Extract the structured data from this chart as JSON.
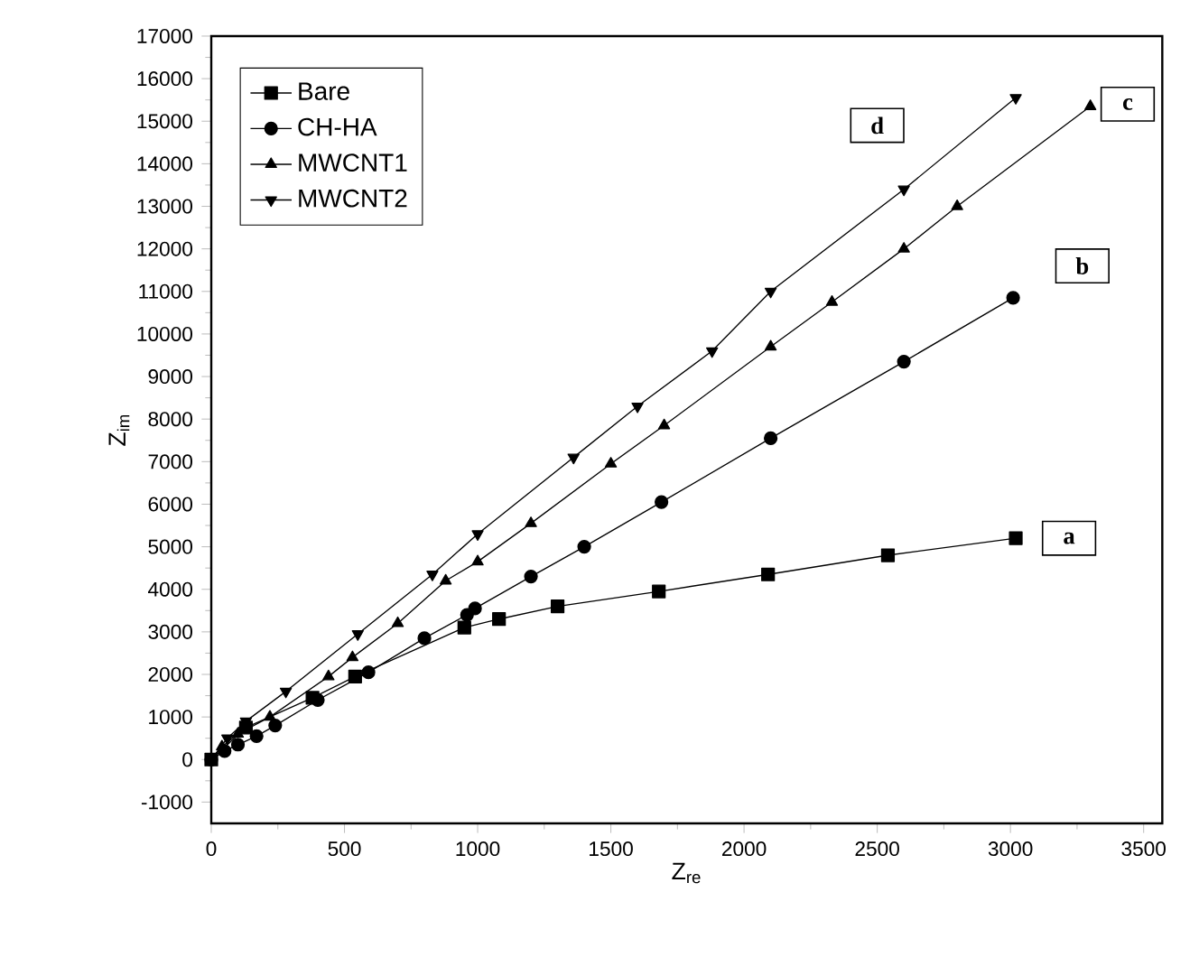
{
  "chart_data": {
    "type": "line",
    "xlabel": "Z$_{re}$",
    "ylabel": "Z$_{im}$",
    "xlim": [
      0,
      3570
    ],
    "ylim": [
      -1500,
      17000
    ],
    "xticks": [
      0,
      500,
      1000,
      1500,
      2000,
      2500,
      3000,
      3500
    ],
    "yticks": [
      -1000,
      0,
      1000,
      2000,
      3000,
      4000,
      5000,
      6000,
      7000,
      8000,
      9000,
      10000,
      11000,
      12000,
      13000,
      14000,
      15000,
      16000,
      17000
    ],
    "grid": false,
    "legend": "top left",
    "line_style": "solid",
    "series": [
      {
        "name": "Bare",
        "color": "#000000",
        "marker": "square",
        "x": [
          0,
          20,
          40,
          60,
          90,
          130,
          380,
          540,
          950,
          1080,
          1300,
          1680,
          2090,
          2540,
          3020
        ],
        "values": [
          0,
          null,
          null,
          null,
          null,
          750,
          1450,
          1950,
          3100,
          3300,
          3600,
          3950,
          4350,
          4800,
          5200
        ]
      },
      {
        "name": "CH-HA",
        "color": "#000000",
        "marker": "circle",
        "x": [
          0,
          50,
          100,
          170,
          240,
          400,
          590,
          800,
          960,
          990,
          1200,
          1400,
          1690,
          2100,
          2600,
          3010
        ],
        "values": [
          0,
          200,
          350,
          550,
          800,
          1400,
          2050,
          2850,
          3400,
          3550,
          4300,
          5000,
          6050,
          7550,
          9350,
          10850
        ]
      },
      {
        "name": "MWCNT1",
        "color": "#000000",
        "marker": "triangle",
        "x": [
          0,
          40,
          100,
          220,
          440,
          530,
          700,
          880,
          1000,
          1200,
          1500,
          1700,
          2100,
          2330,
          2600,
          2800,
          3300
        ],
        "values": [
          0,
          300,
          600,
          1000,
          1950,
          2400,
          3200,
          4200,
          4650,
          5550,
          6950,
          7850,
          9700,
          10750,
          12000,
          13000,
          15350
        ]
      },
      {
        "name": "MWCNT2",
        "color": "#000000",
        "marker": "triangle-down",
        "x": [
          0,
          30,
          60,
          130,
          280,
          550,
          830,
          1000,
          1360,
          1600,
          1880,
          2100,
          2600,
          3020
        ],
        "values": [
          0,
          null,
          500,
          900,
          1600,
          2950,
          4350,
          5300,
          7100,
          8300,
          9600,
          11000,
          13400,
          15550
        ]
      }
    ],
    "annotations": [
      {
        "text": "a",
        "x": 3220,
        "y": 5200
      },
      {
        "text": "b",
        "x": 3270,
        "y": 11600
      },
      {
        "text": "c",
        "x": 3440,
        "y": 15400
      },
      {
        "text": "d",
        "x": 2500,
        "y": 14900
      }
    ]
  }
}
